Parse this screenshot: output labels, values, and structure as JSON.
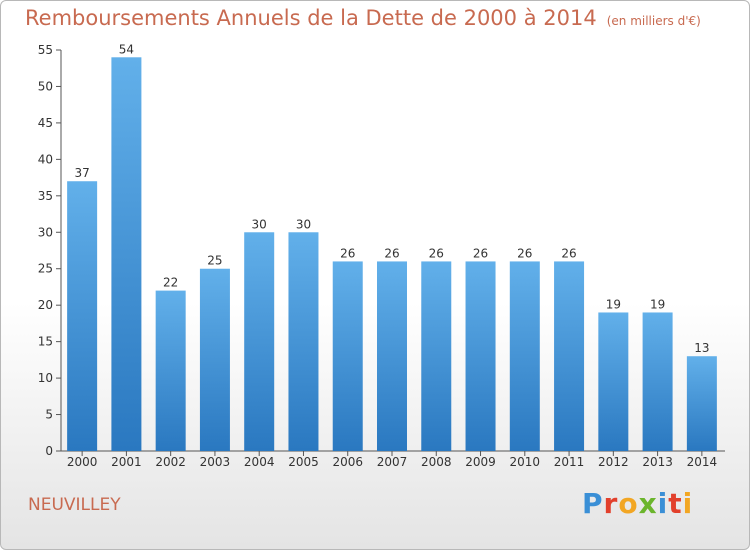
{
  "title": "Remboursements Annuels de la Dette de 2000 à 2014",
  "unit": "(en milliers d'€)",
  "commune": "NEUVILLEY",
  "logo": {
    "letters": [
      "P",
      "r",
      "o",
      "x",
      "i",
      "t",
      "i"
    ],
    "colors": [
      "#3a8fd6",
      "#e2402c",
      "#f2a623",
      "#6bb52c",
      "#3a8fd6",
      "#e2402c",
      "#f2a623"
    ]
  },
  "colors": {
    "bar": "#5aaae6",
    "bar_dark": "#2a78c0",
    "title": "#c86a50"
  },
  "chart_data": {
    "type": "bar",
    "title": "Remboursements Annuels de la Dette de 2000 à 2014",
    "categories": [
      "2000",
      "2001",
      "2002",
      "2003",
      "2004",
      "2005",
      "2006",
      "2007",
      "2008",
      "2009",
      "2010",
      "2011",
      "2012",
      "2013",
      "2014"
    ],
    "values": [
      37,
      54,
      22,
      25,
      30,
      30,
      26,
      26,
      26,
      26,
      26,
      26,
      19,
      19,
      13
    ],
    "ylim": [
      0,
      55
    ],
    "yticks": [
      0,
      5,
      10,
      15,
      20,
      25,
      30,
      35,
      40,
      45,
      50,
      55
    ],
    "xlabel": "",
    "ylabel": "",
    "grid": false
  }
}
